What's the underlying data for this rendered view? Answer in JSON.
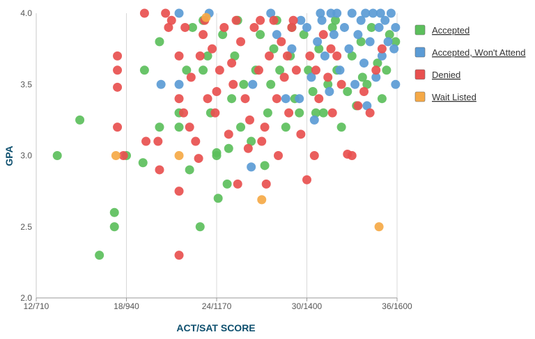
{
  "chart_data": {
    "type": "scatter",
    "xlabel": "ACT/SAT SCORE",
    "ylabel": "GPA",
    "xlim": [
      12,
      36
    ],
    "ylim": [
      2.0,
      4.0
    ],
    "x_ticks": [
      {
        "value": 12,
        "label": "12/710"
      },
      {
        "value": 18,
        "label": "18/940"
      },
      {
        "value": 24,
        "label": "24/1170"
      },
      {
        "value": 30,
        "label": "30/1400"
      },
      {
        "value": 36,
        "label": "36/1600"
      }
    ],
    "y_ticks": [
      {
        "value": 2.0,
        "label": "2.0"
      },
      {
        "value": 2.5,
        "label": "2.5"
      },
      {
        "value": 3.0,
        "label": "3.0"
      },
      {
        "value": 3.5,
        "label": "3.5"
      },
      {
        "value": 4.0,
        "label": "4.0"
      }
    ],
    "grid": "vertical",
    "legend_position": "right",
    "series": [
      {
        "name": "Accepted",
        "color": "#5cbf5c",
        "points": [
          [
            13.4,
            3.0
          ],
          [
            14.9,
            3.25
          ],
          [
            16.2,
            2.3
          ],
          [
            17.2,
            2.6
          ],
          [
            17.2,
            2.5
          ],
          [
            18.0,
            3.0
          ],
          [
            19.1,
            2.95
          ],
          [
            19.2,
            3.6
          ],
          [
            20.2,
            3.2
          ],
          [
            20.2,
            3.8
          ],
          [
            21.5,
            3.3
          ],
          [
            21.5,
            3.2
          ],
          [
            22.0,
            3.6
          ],
          [
            22.2,
            2.9
          ],
          [
            22.9,
            2.5
          ],
          [
            23.1,
            3.6
          ],
          [
            23.4,
            3.7
          ],
          [
            23.6,
            3.3
          ],
          [
            24.0,
            3.0
          ],
          [
            24.0,
            3.02
          ],
          [
            24.1,
            2.7
          ],
          [
            24.7,
            2.8
          ],
          [
            24.8,
            3.05
          ],
          [
            25.0,
            3.4
          ],
          [
            25.2,
            3.7
          ],
          [
            25.6,
            3.2
          ],
          [
            25.8,
            3.5
          ],
          [
            26.3,
            3.1
          ],
          [
            26.6,
            3.6
          ],
          [
            27.2,
            2.93
          ],
          [
            27.4,
            3.3
          ],
          [
            27.6,
            3.5
          ],
          [
            28.0,
            3.95
          ],
          [
            28.2,
            3.6
          ],
          [
            28.6,
            3.2
          ],
          [
            28.9,
            3.7
          ],
          [
            29.2,
            3.4
          ],
          [
            29.5,
            3.3
          ],
          [
            29.8,
            3.85
          ],
          [
            30.1,
            3.6
          ],
          [
            30.4,
            3.45
          ],
          [
            30.8,
            3.75
          ],
          [
            31.1,
            3.3
          ],
          [
            31.4,
            3.5
          ],
          [
            31.7,
            3.9
          ],
          [
            32.0,
            3.6
          ],
          [
            32.3,
            3.2
          ],
          [
            32.7,
            3.45
          ],
          [
            33.0,
            3.7
          ],
          [
            33.3,
            3.35
          ],
          [
            33.6,
            3.8
          ],
          [
            34.0,
            3.5
          ],
          [
            34.3,
            3.9
          ],
          [
            34.7,
            3.65
          ],
          [
            35.0,
            3.4
          ],
          [
            35.5,
            3.85
          ],
          [
            35.9,
            3.8
          ],
          [
            35.3,
            3.6
          ],
          [
            31.9,
            3.95
          ],
          [
            29.0,
            3.9
          ],
          [
            26.9,
            3.85
          ],
          [
            24.4,
            3.85
          ],
          [
            23.1,
            3.95
          ],
          [
            22.4,
            3.9
          ],
          [
            33.7,
            3.55
          ],
          [
            30.6,
            3.3
          ],
          [
            27.8,
            3.75
          ],
          [
            25.4,
            3.95
          ]
        ]
      },
      {
        "name": "Accepted, Won't Attend",
        "color": "#5b9bd5",
        "points": [
          [
            20.3,
            3.5
          ],
          [
            21.5,
            4.0
          ],
          [
            21.5,
            3.5
          ],
          [
            23.5,
            4.0
          ],
          [
            26.3,
            2.92
          ],
          [
            26.4,
            3.5
          ],
          [
            27.6,
            4.0
          ],
          [
            28.0,
            3.85
          ],
          [
            29.0,
            3.75
          ],
          [
            29.5,
            3.4
          ],
          [
            30.0,
            3.9
          ],
          [
            30.3,
            3.55
          ],
          [
            30.5,
            3.25
          ],
          [
            30.7,
            3.8
          ],
          [
            31.0,
            3.95
          ],
          [
            31.2,
            3.7
          ],
          [
            31.5,
            3.45
          ],
          [
            31.8,
            3.85
          ],
          [
            32.0,
            4.0
          ],
          [
            32.2,
            3.6
          ],
          [
            32.5,
            3.9
          ],
          [
            32.8,
            3.75
          ],
          [
            33.0,
            4.0
          ],
          [
            33.2,
            3.5
          ],
          [
            33.4,
            3.85
          ],
          [
            33.6,
            3.95
          ],
          [
            33.8,
            3.65
          ],
          [
            34.0,
            3.35
          ],
          [
            34.2,
            3.8
          ],
          [
            34.4,
            4.0
          ],
          [
            34.6,
            3.55
          ],
          [
            34.8,
            3.9
          ],
          [
            35.0,
            3.7
          ],
          [
            35.2,
            3.95
          ],
          [
            35.4,
            3.8
          ],
          [
            35.6,
            4.0
          ],
          [
            35.8,
            3.75
          ],
          [
            35.9,
            3.5
          ],
          [
            35.9,
            3.9
          ],
          [
            30.9,
            4.0
          ],
          [
            31.6,
            4.0
          ],
          [
            33.9,
            4.0
          ],
          [
            34.9,
            4.0
          ],
          [
            29.6,
            3.95
          ],
          [
            28.6,
            3.4
          ]
        ]
      },
      {
        "name": "Denied",
        "color": "#e8504f",
        "points": [
          [
            17.4,
            3.7
          ],
          [
            17.4,
            3.6
          ],
          [
            17.4,
            3.48
          ],
          [
            17.4,
            3.2
          ],
          [
            17.8,
            3.0
          ],
          [
            19.2,
            4.0
          ],
          [
            19.3,
            3.1
          ],
          [
            20.1,
            3.1
          ],
          [
            20.2,
            2.9
          ],
          [
            20.6,
            4.0
          ],
          [
            20.8,
            3.9
          ],
          [
            21.5,
            3.7
          ],
          [
            21.5,
            3.4
          ],
          [
            21.5,
            2.75
          ],
          [
            21.5,
            2.3
          ],
          [
            21.9,
            3.9
          ],
          [
            22.2,
            3.2
          ],
          [
            22.3,
            3.55
          ],
          [
            22.6,
            3.1
          ],
          [
            22.8,
            2.98
          ],
          [
            23.1,
            3.85
          ],
          [
            23.4,
            3.4
          ],
          [
            23.7,
            3.75
          ],
          [
            23.9,
            3.3
          ],
          [
            24.2,
            3.6
          ],
          [
            24.5,
            3.9
          ],
          [
            24.8,
            3.15
          ],
          [
            25.1,
            3.5
          ],
          [
            25.4,
            2.8
          ],
          [
            25.6,
            3.8
          ],
          [
            25.9,
            3.4
          ],
          [
            26.1,
            3.05
          ],
          [
            26.5,
            3.9
          ],
          [
            26.8,
            3.6
          ],
          [
            27.2,
            3.2
          ],
          [
            27.3,
            2.8
          ],
          [
            27.5,
            3.7
          ],
          [
            27.8,
            3.95
          ],
          [
            28.0,
            3.4
          ],
          [
            28.3,
            3.8
          ],
          [
            28.5,
            3.55
          ],
          [
            28.8,
            3.3
          ],
          [
            29.0,
            3.9
          ],
          [
            29.3,
            3.6
          ],
          [
            29.6,
            3.15
          ],
          [
            30.0,
            2.83
          ],
          [
            30.2,
            3.7
          ],
          [
            30.5,
            3.0
          ],
          [
            30.8,
            3.4
          ],
          [
            31.1,
            3.85
          ],
          [
            31.4,
            3.55
          ],
          [
            31.7,
            3.3
          ],
          [
            32.0,
            3.7
          ],
          [
            32.3,
            3.5
          ],
          [
            32.7,
            3.01
          ],
          [
            33.0,
            3.0
          ],
          [
            33.4,
            3.35
          ],
          [
            33.8,
            3.45
          ],
          [
            34.2,
            3.3
          ],
          [
            34.6,
            3.6
          ],
          [
            35.0,
            3.75
          ],
          [
            28.1,
            3.0
          ],
          [
            27.0,
            3.1
          ],
          [
            26.2,
            3.25
          ],
          [
            25.0,
            3.65
          ],
          [
            24.0,
            3.45
          ],
          [
            22.9,
            3.7
          ],
          [
            21.8,
            3.3
          ],
          [
            21.0,
            3.95
          ],
          [
            23.2,
            3.95
          ],
          [
            25.3,
            3.95
          ],
          [
            26.9,
            3.95
          ],
          [
            29.1,
            3.95
          ],
          [
            28.7,
            3.7
          ],
          [
            30.6,
            3.6
          ],
          [
            31.6,
            3.75
          ]
        ]
      },
      {
        "name": "Wait Listed",
        "color": "#f5a947",
        "points": [
          [
            17.3,
            3.0
          ],
          [
            21.5,
            3.0
          ],
          [
            23.3,
            3.97
          ],
          [
            27.0,
            2.69
          ],
          [
            34.8,
            2.5
          ]
        ]
      }
    ]
  }
}
